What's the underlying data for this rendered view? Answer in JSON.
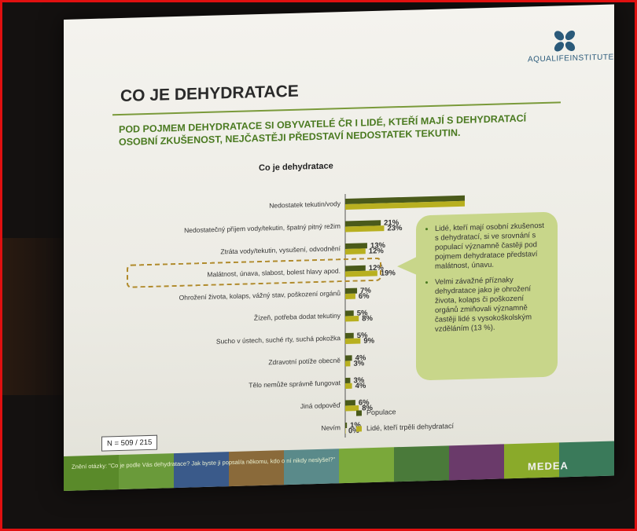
{
  "slide": {
    "logo_text": "AQUALIFEINSTITUTE",
    "title": "CO JE DEHYDRATACE",
    "subtitle": "POD POJMEM DEHYDRATACE SI OBYVATELÉ ČR I LIDÉ, KTEŘÍ MAJÍ S DEHYDRATACÍ OSOBNÍ ZKUŠENOST, NEJČASTĚJI PŘEDSTAVÍ NEDOSTATEK TEKUTIN.",
    "sample_size": "N = 509 / 215",
    "footer_question": "Znění otázky: \"Co je podle Vás dehydratace? Jak byste ji popsal/a někomu, kdo o ní nikdy neslyšel?\"",
    "brand": "MEDEA",
    "callout": {
      "bullet1": "Lidé, kteří mají osobní zkušenost s dehydratací, si ve srovnání s populací významně častěji pod pojmem dehydratace představí malátnost, únavu.",
      "bullet2": "Velmi závažné příznaky dehydratace jako je ohrožení života, kolaps či poškození orgánů zmiňovali významně častěji lidé s vysokoškolským vzděláním (13 %)."
    }
  },
  "chart_data": {
    "type": "bar",
    "orientation": "horizontal",
    "title": "Co je dehydratace",
    "categories": [
      "Nedostatek tekutin/vody",
      "Nedostatečný příjem vody/tekutin, špatný pitný režim",
      "Ztráta vody/tekutin, vysušení, odvodnění",
      "Malátnost, únava, slabost, bolest hlavy apod.",
      "Ohrožení života, kolaps, vážný stav, poškození orgánů",
      "Žízeň, potřeba dodat tekutiny",
      "Sucho v ústech, suché rty, suchá pokožka",
      "Zdravotní potíže obecně",
      "Tělo nemůže správně fungovat",
      "Jiná odpověď",
      "Nevím"
    ],
    "series": [
      {
        "name": "Populace",
        "color": "#4a5a1a",
        "values": [
          72,
          21,
          13,
          12,
          7,
          5,
          5,
          4,
          3,
          6,
          1
        ]
      },
      {
        "name": "Lidé, kteří trpěli dehydratací",
        "color": "#b8b020",
        "values": [
          76,
          23,
          12,
          19,
          6,
          8,
          9,
          3,
          4,
          8,
          0
        ]
      }
    ],
    "value_suffix": "%",
    "xlim": [
      0,
      100
    ],
    "legend": "bottom-right",
    "grid": false
  }
}
